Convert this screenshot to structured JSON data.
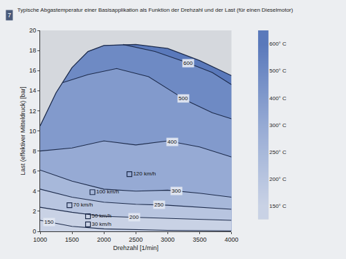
{
  "figure_number": "7",
  "chart_data": {
    "type": "line",
    "title": "Typische Abgastemperatur einer Basisapplikation als Funktion der Drehzahl und der Last (für einen Dieselmotor)",
    "x_label": "Drehzahl [1/min]",
    "y_label": "Last (effektiver Mitteldruck) [bar]",
    "xlim": [
      1000,
      4000
    ],
    "xticks": [
      1000,
      1500,
      2000,
      2500,
      3000,
      3500,
      4000
    ],
    "ylim": [
      0,
      20
    ],
    "yticks": [
      0,
      2,
      4,
      6,
      8,
      10,
      12,
      14,
      16,
      18,
      20
    ],
    "grid": false,
    "full_load": {
      "x": [
        1000,
        1250,
        1500,
        1750,
        2000,
        2500,
        3000,
        3500,
        4000
      ],
      "y": [
        10.5,
        13.8,
        16.3,
        17.9,
        18.5,
        18.6,
        18.2,
        17.0,
        15.5
      ]
    },
    "series": [
      {
        "name": "600",
        "x": [
          2300,
          2800,
          3300,
          3700,
          4000
        ],
        "y": [
          18.6,
          17.9,
          16.8,
          15.8,
          14.6
        ],
        "label_x": 3320
      },
      {
        "name": "500",
        "x": [
          1350,
          1750,
          2200,
          2700,
          3300,
          3700,
          4000
        ],
        "y": [
          14.8,
          15.6,
          16.2,
          15.4,
          13.0,
          11.8,
          11.2
        ],
        "label_x": 3250
      },
      {
        "name": "400",
        "x": [
          1000,
          1500,
          2000,
          2500,
          3000,
          3500,
          4000
        ],
        "y": [
          8.0,
          8.3,
          9.0,
          8.6,
          9.0,
          8.4,
          7.4
        ],
        "label_x": 3070
      },
      {
        "name": "300",
        "x": [
          1000,
          1500,
          2000,
          2500,
          3000,
          3500,
          4000
        ],
        "y": [
          6.1,
          5.0,
          4.2,
          4.0,
          4.1,
          3.8,
          3.4
        ],
        "label_x": 3140
      },
      {
        "name": "250",
        "x": [
          1000,
          1500,
          2000,
          2500,
          3000,
          3500,
          4000
        ],
        "y": [
          4.2,
          3.4,
          2.9,
          2.7,
          2.6,
          2.4,
          2.2
        ],
        "label_x": 2870
      },
      {
        "name": "200",
        "x": [
          1000,
          1500,
          2000,
          2500,
          3000,
          3500,
          4000
        ],
        "y": [
          2.4,
          1.9,
          1.5,
          1.4,
          1.3,
          1.2,
          1.1
        ],
        "label_x": 2480
      },
      {
        "name": "150",
        "x": [
          1000,
          1500,
          2000,
          3000,
          4000
        ],
        "y": [
          1.1,
          0.5,
          0.25,
          0.1,
          0.05
        ],
        "label_x": 1140
      }
    ],
    "points": {
      "marker": "square-open",
      "x": [
        2400,
        1820,
        1460,
        1750,
        1750
      ],
      "y": [
        5.7,
        3.9,
        2.6,
        1.5,
        0.7
      ],
      "labels": [
        "120 km/h",
        "100 km/h",
        "70 km/h",
        "50 km/h",
        "30 km/h"
      ]
    },
    "colorbar": {
      "ticks": [
        {
          "value": 150,
          "label": "150° C"
        },
        {
          "value": 200,
          "label": "200° C"
        },
        {
          "value": 250,
          "label": "250° C"
        },
        {
          "value": 300,
          "label": "300° C"
        },
        {
          "value": 400,
          "label": "400° C"
        },
        {
          "value": 500,
          "label": "500° C"
        },
        {
          "value": 600,
          "label": "600° C"
        }
      ],
      "colors": [
        "#c9d2e5",
        "#b8c5e0",
        "#a7b8da",
        "#96aad4",
        "#829acc",
        "#6e8ac4",
        "#5a79bb"
      ]
    }
  }
}
